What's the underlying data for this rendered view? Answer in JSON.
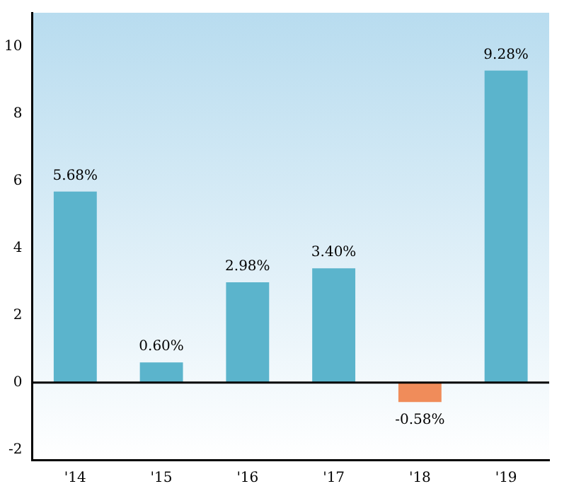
{
  "chart_data": {
    "type": "bar",
    "categories": [
      "'14",
      "'15",
      "'16",
      "'17",
      "'18",
      "'19"
    ],
    "values": [
      5.68,
      0.6,
      2.98,
      3.4,
      -0.58,
      9.28
    ],
    "colors": [
      "#5bb4cc",
      "#5bb4cc",
      "#5bb4cc",
      "#5bb4cc",
      "#f08c5a",
      "#5bb4cc"
    ],
    "value_labels": [
      "5.68%",
      "0.60%",
      "2.98%",
      "3.40%",
      "-0.58%",
      "9.28%"
    ],
    "ylim": [
      -2.3,
      11
    ],
    "yticks": [
      -2,
      0,
      2,
      4,
      6,
      8,
      10
    ],
    "ref_lines": [
      {
        "axis": "y",
        "value": 0,
        "color": "#000000"
      }
    ],
    "grid": false,
    "legend": false
  }
}
